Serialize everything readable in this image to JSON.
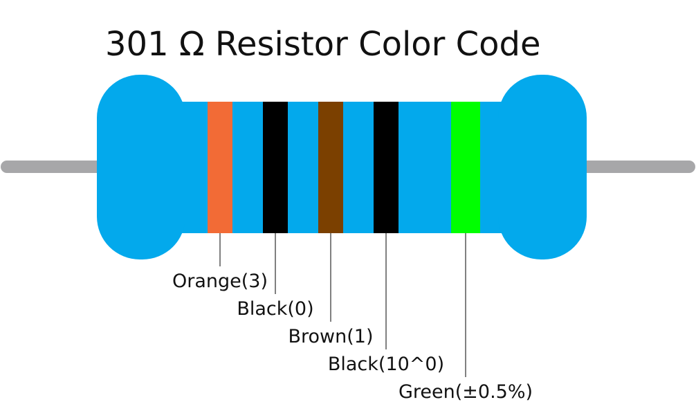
{
  "title": "301 Ω Resistor Color Code",
  "bands": [
    {
      "label": "Orange(3)",
      "color": "#f26b36"
    },
    {
      "label": "Black(0)",
      "color": "#000000"
    },
    {
      "label": "Brown(1)",
      "color": "#7b4000"
    },
    {
      "label": "Black(10^0)",
      "color": "#000000"
    },
    {
      "label": "Green(±0.5%)",
      "color": "#00ff00"
    }
  ]
}
